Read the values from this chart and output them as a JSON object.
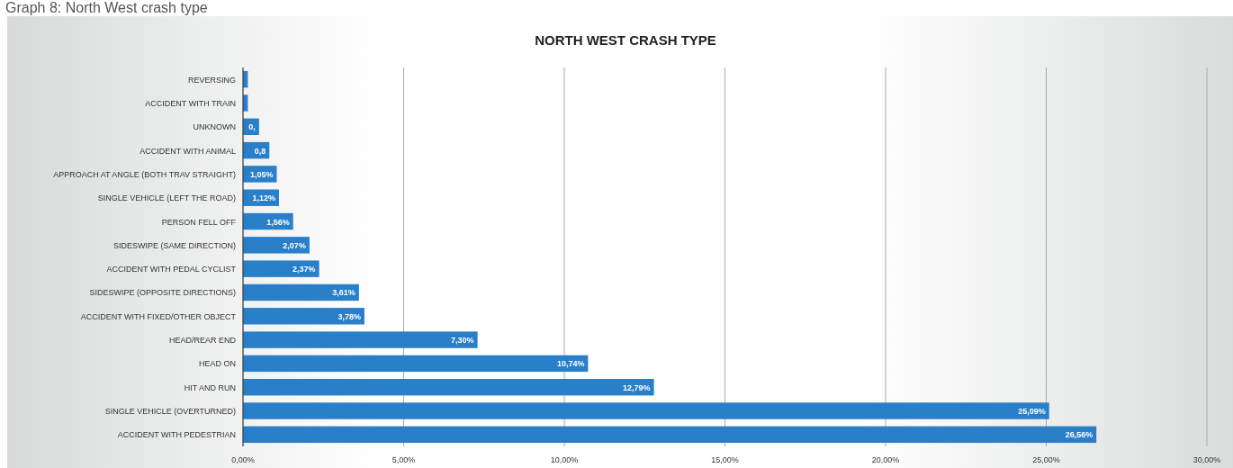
{
  "chart_data": {
    "type": "bar",
    "orientation": "horizontal",
    "title": "NORTH WEST CRASH TYPE",
    "annotations": [
      "Graph 8: North West crash type"
    ],
    "categories": [
      "REVERSING",
      "ACCIDENT WITH TRAIN",
      "UNKNOWN",
      "ACCIDENT WITH ANIMAL",
      "APPROACH AT ANGLE (BOTH TRAV  STRAIGHT)",
      "SINGLE VEHICLE (LEFT THE ROAD)",
      "PERSON FELL OFF",
      "SIDESWIPE (SAME DIRECTION)",
      "ACCIDENT WITH PEDAL CYCLIST",
      "SIDESWIPE (OPPOSITE DIRECTIONS)",
      "ACCIDENT WITH FIXED/OTHER OBJECT",
      "HEAD/REAR END",
      "HEAD ON",
      "HIT AND RUN",
      "SINGLE VEHICLE (OVERTURNED)",
      "ACCIDENT WITH PEDESTRIAN"
    ],
    "values": [
      0.15,
      0.15,
      0.5,
      0.82,
      1.05,
      1.12,
      1.56,
      2.07,
      2.37,
      3.61,
      3.78,
      7.3,
      10.74,
      12.79,
      25.09,
      26.56
    ],
    "value_labels": [
      null,
      null,
      "0,",
      "0,8",
      "1,05%",
      "1,12%",
      "1,56%",
      "2,07%",
      "2,37%",
      "3,61%",
      "3,78%",
      "7,30%",
      "10,74%",
      "12,79%",
      "25,09%",
      "26,56%"
    ],
    "color": "#2a7fc9",
    "xlim": [
      0,
      30
    ],
    "xticks": [
      {
        "value": 0,
        "label": "0,00%"
      },
      {
        "value": 5,
        "label": "5,00%"
      },
      {
        "value": 10,
        "label": "10,00%"
      },
      {
        "value": 15,
        "label": "15,00%"
      },
      {
        "value": 20,
        "label": "20,00%"
      },
      {
        "value": 25,
        "label": "25,00%"
      },
      {
        "value": 30,
        "label": "30,00%"
      }
    ],
    "grid": "x"
  }
}
